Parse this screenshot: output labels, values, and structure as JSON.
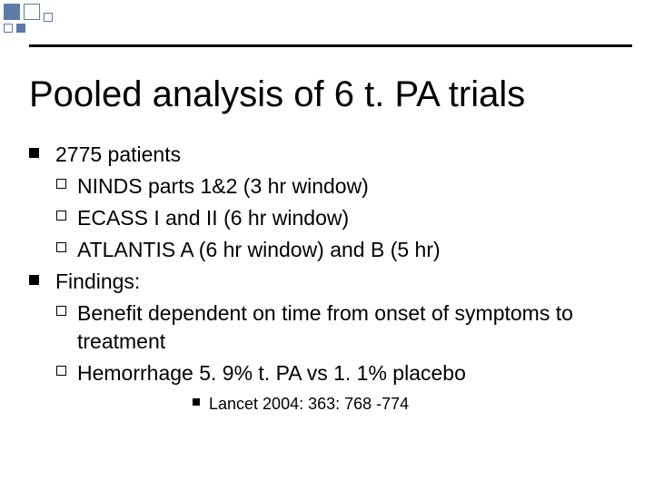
{
  "title": "Pooled analysis of 6  t. PA trials",
  "items": [
    {
      "text": "2775 patients",
      "sub": [
        {
          "text": "NINDS parts 1&2 (3 hr window)"
        },
        {
          "text": "ECASS I and II (6 hr window)"
        },
        {
          "text": "ATLANTIS A (6 hr window) and B (5 hr)"
        }
      ]
    },
    {
      "text": "Findings:",
      "sub": [
        {
          "text": "Benefit dependent on time from onset of symptoms to treatment"
        },
        {
          "text": "Hemorrhage 5. 9% t. PA vs 1. 1% placebo"
        }
      ]
    }
  ],
  "citation": "Lancet 2004: 363: 768 -774",
  "colors": {
    "accent": "#5b7ba8",
    "text": "#000000",
    "bg": "#ffffff"
  }
}
